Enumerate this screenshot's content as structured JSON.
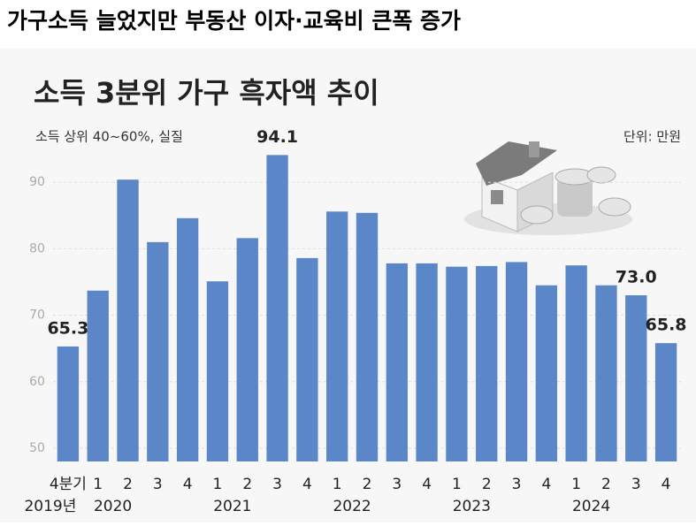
{
  "headline": "가구소득 늘었지만 부동산 이자·교육비 큰폭 증가",
  "chart_data": {
    "type": "bar",
    "title": "소득 3분위 가구 흑자액 추이",
    "subtitle": "소득 상위 40~60%, 실질",
    "unit": "단위: 만원",
    "categories": [
      "4분기",
      "1",
      "2",
      "3",
      "4",
      "1",
      "2",
      "3",
      "4",
      "1",
      "2",
      "3",
      "4",
      "1",
      "2",
      "3",
      "4",
      "1",
      "2",
      "3",
      "4"
    ],
    "years": [
      "2019년",
      "2020",
      "2021",
      "2022",
      "2023",
      "2024"
    ],
    "values": [
      65.3,
      73.7,
      90.4,
      81.0,
      84.6,
      75.1,
      81.6,
      94.1,
      78.6,
      85.6,
      85.4,
      77.8,
      77.8,
      77.3,
      77.4,
      78.0,
      74.5,
      77.5,
      74.5,
      73.0,
      65.8
    ],
    "value_labels": [
      "65.3",
      null,
      null,
      null,
      null,
      null,
      null,
      "94.1",
      null,
      null,
      null,
      null,
      null,
      null,
      null,
      null,
      null,
      null,
      null,
      "73.0",
      "65.8"
    ],
    "color": "#5b86c8",
    "ylim": [
      48,
      100
    ],
    "yticks": [
      50,
      60,
      70,
      80,
      90
    ],
    "grid": true
  }
}
